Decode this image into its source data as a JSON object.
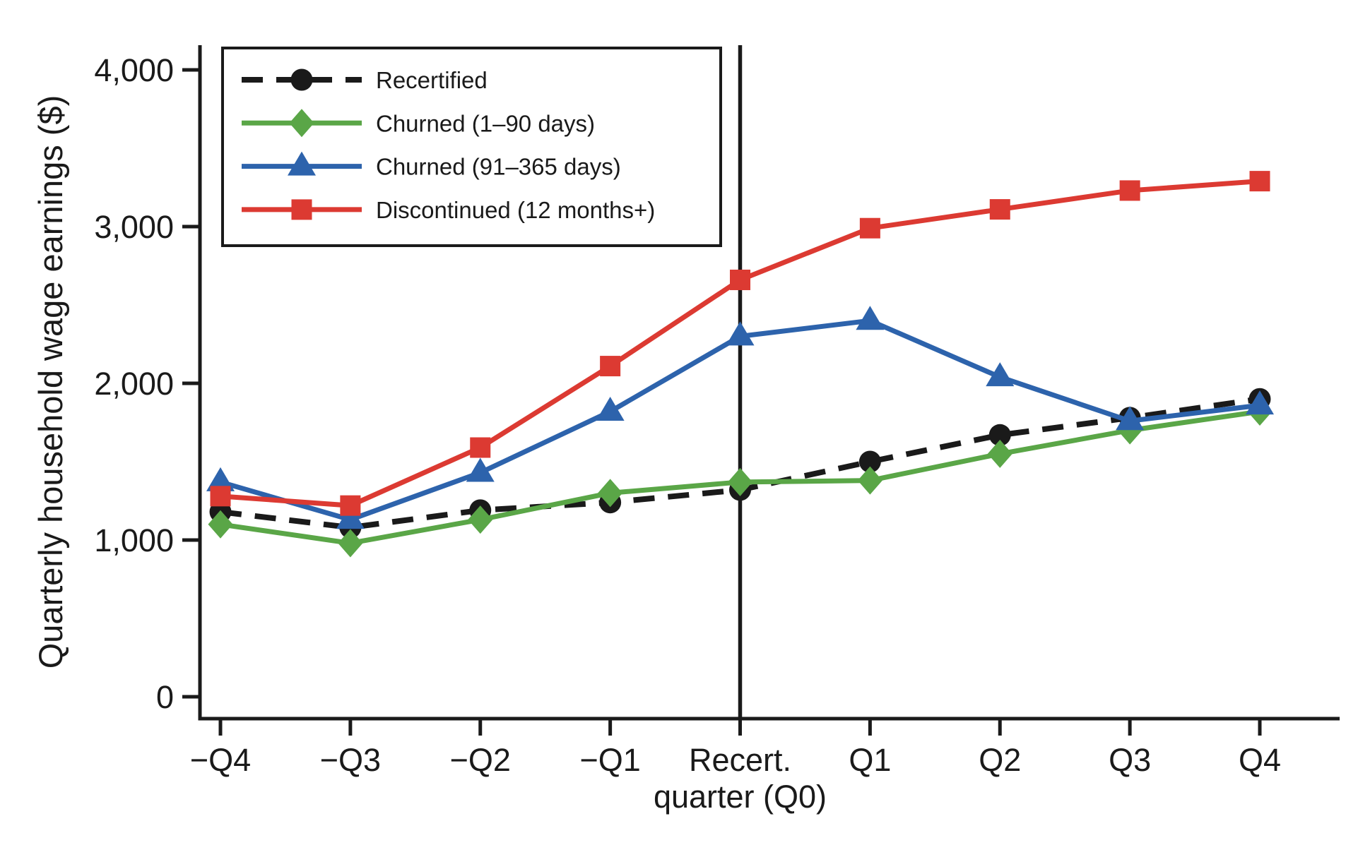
{
  "chart_data": {
    "type": "line",
    "title": "",
    "ylabel": "Quarterly household wage earnings ($)",
    "ylim": [
      0,
      4000
    ],
    "yticks": [
      0,
      1000,
      2000,
      3000,
      4000
    ],
    "ytick_labels": [
      "0",
      "1,000",
      "2,000",
      "3,000",
      "4,000"
    ],
    "categories": [
      "−Q4",
      "−Q3",
      "−Q2",
      "−Q1",
      "Recert. quarter (Q0)",
      "Q1",
      "Q2",
      "Q3",
      "Q4"
    ],
    "xtick_labels": [
      [
        "−Q4"
      ],
      [
        "−Q3"
      ],
      [
        "−Q2"
      ],
      [
        "−Q1"
      ],
      [
        "Recert.",
        "quarter (Q0)"
      ],
      [
        "Q1"
      ],
      [
        "Q2"
      ],
      [
        "Q3"
      ],
      [
        "Q4"
      ]
    ],
    "reference_line_at_category_index": 4,
    "grid": false,
    "legend_position": "top-left-inside",
    "axis_color": "#1a1a1a",
    "background_color": "#ffffff",
    "series": [
      {
        "name": "Recertified",
        "color": "#1a1a1a",
        "marker": "circle",
        "line_style": "dashed",
        "values": [
          1180,
          1080,
          1190,
          1240,
          1320,
          1500,
          1670,
          1780,
          1900
        ]
      },
      {
        "name": "Churned (1–90 days)",
        "color": "#5aa647",
        "marker": "diamond",
        "line_style": "solid",
        "values": [
          1100,
          980,
          1130,
          1300,
          1370,
          1380,
          1550,
          1700,
          1820
        ]
      },
      {
        "name": "Churned (91–365 days)",
        "color": "#2d63ac",
        "marker": "triangle",
        "line_style": "solid",
        "values": [
          1370,
          1130,
          1430,
          1820,
          2300,
          2400,
          2040,
          1760,
          1860
        ]
      },
      {
        "name": "Discontinued (12 months+)",
        "color": "#dc3a32",
        "marker": "square",
        "line_style": "solid",
        "values": [
          1280,
          1220,
          1590,
          2110,
          2660,
          2990,
          3110,
          3230,
          3290
        ]
      }
    ]
  }
}
